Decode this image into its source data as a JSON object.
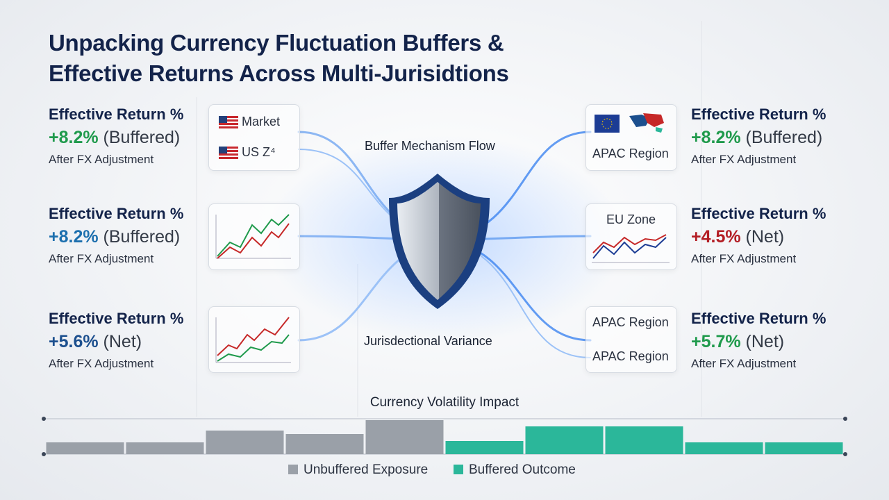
{
  "title_lines": [
    "Unpacking Currency Fluctuation Buffers &",
    "Effective Returns Across Multi-Jurisidtions"
  ],
  "left_cards": [
    {
      "heading": "Effective Return %",
      "value": "+8.2%",
      "qualifier": "(Buffered)",
      "note": "After FX Adjustment",
      "color": "#1f9a4c"
    },
    {
      "heading": "Effective Return %",
      "value": "+8.2%",
      "qualifier": "(Buffered)",
      "note": "After FX Adjustment",
      "color": "#1c6fae"
    },
    {
      "heading": "Effective Return %",
      "value": "+5.6%",
      "qualifier": "(Net)",
      "note": "After FX Adjustment",
      "color": "#1c4f8e"
    }
  ],
  "right_cards": [
    {
      "heading": "Effective Return %",
      "value": "+8.2%",
      "qualifier": "(Buffered)",
      "note": "After FX Adjustment",
      "color": "#1f9a4c"
    },
    {
      "heading": "Effective Return %",
      "value": "+4.5%",
      "qualifier": "(Net)",
      "note": "After FX Adjustment",
      "color": "#b31d24"
    },
    {
      "heading": "Effective Return %",
      "value": "+5.7%",
      "qualifier": "(Net)",
      "note": "After FX Adjustment",
      "color": "#1f9a4c"
    }
  ],
  "left_widgets": {
    "market": "Market",
    "us": "US Z⁴"
  },
  "right_widgets": {
    "top": "APAC Region",
    "middle": "EU Zone",
    "bottom_1": "APAC Region",
    "bottom_2": "APAC Region"
  },
  "center": {
    "top": "Buffer Mechanism Flow",
    "bottom": "Jurisdectional Variance"
  },
  "chart_data": {
    "type": "bar",
    "title": "Currency Volatility Impact",
    "categories": [
      null,
      null,
      null,
      null,
      null,
      null,
      null,
      null,
      null,
      null
    ],
    "series": [
      {
        "name": "Unbuffered Exposure",
        "color": "#9aa0a8",
        "values": [
          17,
          17,
          34,
          29,
          49,
          null,
          null,
          null,
          null,
          null
        ]
      },
      {
        "name": "Buffered Outcome",
        "color": "#2bb79a",
        "values": [
          null,
          null,
          null,
          null,
          null,
          19,
          40,
          40,
          17,
          17
        ]
      }
    ],
    "ylim": [
      0,
      60
    ]
  }
}
